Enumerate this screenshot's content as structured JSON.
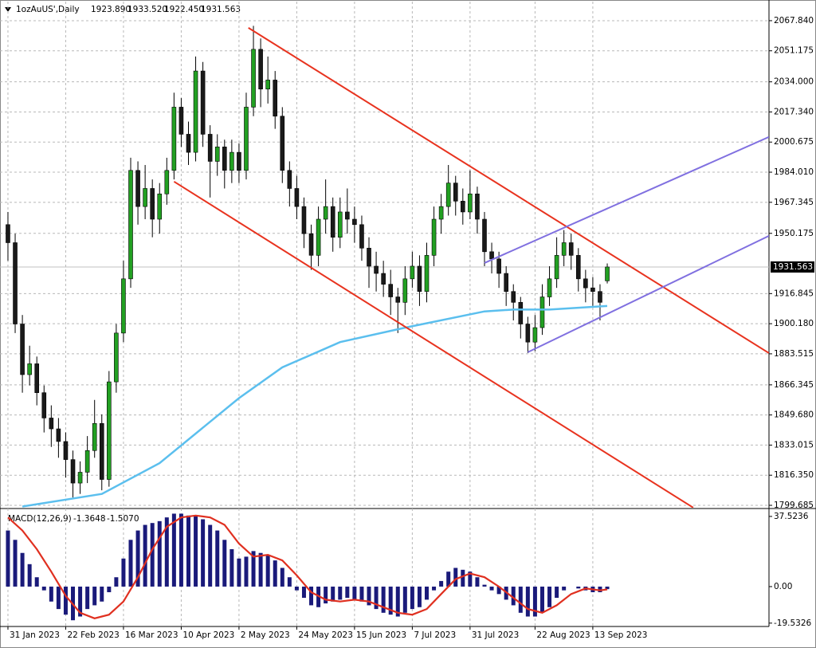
{
  "chart_data": [
    {
      "type": "candlestick",
      "title": "1ozAuUS',Daily",
      "title_values": [
        "1923.890",
        "1933.520",
        "1922.450",
        "1931.563"
      ],
      "xlim": [
        -1.1,
        105.4
      ],
      "xticks": [
        {
          "value": 0,
          "label": "31 Jan 2023"
        },
        {
          "value": 8,
          "label": "22 Feb 2023"
        },
        {
          "value": 16,
          "label": "16 Mar 2023"
        },
        {
          "value": 24,
          "label": "10 Apr 2023"
        },
        {
          "value": 32,
          "label": "2 May 2023"
        },
        {
          "value": 40,
          "label": "24 May 2023"
        },
        {
          "value": 48,
          "label": "15 Jun 2023"
        },
        {
          "value": 56,
          "label": "7 Jul 2023"
        },
        {
          "value": 64,
          "label": "31 Jul 2023"
        },
        {
          "value": 73,
          "label": "22 Aug 2023"
        },
        {
          "value": 81,
          "label": "13 Sep 2023"
        }
      ],
      "ylim": [
        1798.36,
        2078.4
      ],
      "yticks": [
        {
          "value": 2067.84,
          "label": "2067.840"
        },
        2051.175,
        {
          "value": 2034,
          "label": "2034.000"
        },
        {
          "value": 2017.34,
          "label": "2017.340"
        },
        2000.675,
        {
          "value": 1984.01,
          "label": "1984.010"
        },
        1967.345,
        1950.175,
        1916.845,
        {
          "value": 1900.18,
          "label": "1900.180"
        },
        1883.515,
        1866.345,
        {
          "value": 1849.68,
          "label": "1849.680"
        },
        1833.015,
        {
          "value": 1816.35,
          "label": "1816.350"
        },
        1799.685
      ],
      "grid": true,
      "last_price": 1931.563,
      "up_color": "#22a022",
      "down_color": "#1a1a1a",
      "open": [
        1955,
        1945,
        1900,
        1872,
        1878,
        1862,
        1848,
        1842,
        1835,
        1825,
        1812,
        1818,
        1830,
        1845,
        1814,
        1868,
        1895,
        1925,
        1985,
        1965,
        1975,
        1958,
        1972,
        1985,
        2020,
        2005,
        1995,
        2040,
        2005,
        1990,
        1998,
        1985,
        1995,
        1985,
        2020,
        2052,
        2030,
        2035,
        2015,
        1985,
        1975,
        1965,
        1950,
        1938,
        1958,
        1965,
        1948,
        1962,
        1958,
        1955,
        1942,
        1932,
        1928,
        1922,
        1915,
        1912,
        1925,
        1932,
        1918,
        1938,
        1958,
        1965,
        1978,
        1968,
        1962,
        1972,
        1958,
        1940,
        1936,
        1928,
        1918,
        1912,
        1900,
        1890,
        1898,
        1915,
        1925,
        1938,
        1945,
        1938,
        1925,
        1920,
        1918,
        1923.89
      ],
      "high": [
        1962,
        1950,
        1905,
        1888,
        1882,
        1866,
        1855,
        1848,
        1840,
        1830,
        1824,
        1838,
        1858,
        1850,
        1874,
        1900,
        1935,
        1992,
        1990,
        1988,
        1980,
        1978,
        1992,
        2028,
        2025,
        2012,
        2048,
        2045,
        2010,
        2005,
        2002,
        2002,
        2000,
        2028,
        2065,
        2058,
        2048,
        2040,
        2020,
        1990,
        1982,
        1970,
        1955,
        1965,
        1980,
        1970,
        1970,
        1975,
        1965,
        1960,
        1948,
        1940,
        1935,
        1930,
        1920,
        1932,
        1940,
        1938,
        1945,
        1965,
        1972,
        1988,
        1982,
        1975,
        1985,
        1976,
        1962,
        1945,
        1940,
        1932,
        1922,
        1915,
        1904,
        1905,
        1922,
        1932,
        1948,
        1952,
        1950,
        1942,
        1930,
        1926,
        1922,
        1933.52
      ],
      "low": [
        1935,
        1895,
        1862,
        1866,
        1855,
        1840,
        1832,
        1826,
        1815,
        1804,
        1806,
        1812,
        1826,
        1808,
        1810,
        1862,
        1890,
        1920,
        1955,
        1958,
        1948,
        1950,
        1966,
        1980,
        1998,
        1988,
        1990,
        1998,
        1970,
        1982,
        1975,
        1978,
        1978,
        1980,
        2015,
        2020,
        2022,
        2008,
        1978,
        1965,
        1958,
        1942,
        1930,
        1932,
        1950,
        1940,
        1942,
        1950,
        1945,
        1935,
        1920,
        1918,
        1915,
        1905,
        1895,
        1905,
        1920,
        1910,
        1912,
        1932,
        1950,
        1960,
        1960,
        1955,
        1958,
        1950,
        1932,
        1928,
        1920,
        1910,
        1902,
        1892,
        1884,
        1885,
        1894,
        1910,
        1920,
        1932,
        1930,
        1918,
        1912,
        1910,
        1902,
        1922.45
      ],
      "close": [
        1945,
        1900,
        1872,
        1878,
        1862,
        1848,
        1842,
        1835,
        1825,
        1812,
        1818,
        1830,
        1845,
        1814,
        1868,
        1895,
        1925,
        1985,
        1965,
        1975,
        1958,
        1972,
        1985,
        2020,
        2005,
        1995,
        2040,
        2005,
        1990,
        1998,
        1985,
        1995,
        1985,
        2020,
        2052,
        2030,
        2035,
        2015,
        1985,
        1975,
        1965,
        1950,
        1938,
        1958,
        1965,
        1948,
        1962,
        1958,
        1955,
        1942,
        1932,
        1928,
        1922,
        1915,
        1912,
        1925,
        1932,
        1918,
        1938,
        1958,
        1965,
        1978,
        1968,
        1962,
        1972,
        1958,
        1940,
        1936,
        1928,
        1918,
        1912,
        1900,
        1890,
        1898,
        1915,
        1925,
        1938,
        1945,
        1938,
        1925,
        1920,
        1918,
        1912,
        1931.563
      ],
      "lines": [
        {
          "color": "#5bbfee",
          "x": [
            2,
            13,
            21,
            32,
            38,
            46,
            55,
            66,
            70,
            75,
            83
          ],
          "values": [
            1799,
            1806,
            1823,
            1859,
            1876,
            1890,
            1898,
            1907,
            1908,
            1908,
            1910
          ]
        },
        {
          "color": "#e8331f",
          "x": [
            33.3,
            105.4
          ],
          "values": [
            2063.9,
            1883.9
          ]
        },
        {
          "color": "#e8331f",
          "x": [
            23,
            94.9
          ],
          "values": [
            1978.8,
            1798.4
          ]
        },
        {
          "color": "#8070e0",
          "x": [
            72,
            105.4
          ],
          "values": [
            1884.4,
            1948.8
          ]
        },
        {
          "color": "#8070e0",
          "x": [
            66,
            105.4
          ],
          "values": [
            1933.8,
            2003.5
          ]
        }
      ]
    },
    {
      "type": "macd",
      "title": "MACD(12,26,9)",
      "title_values": [
        "-1.3648",
        "-1.5070"
      ],
      "xlim": [
        -1.1,
        105.4
      ],
      "ylim": [
        -20.9,
        40.9
      ],
      "yticks": [
        37.5236,
        {
          "value": 0,
          "label": "0.00"
        },
        -19.5326
      ],
      "color": "#1a1a7a",
      "values": [
        30,
        25,
        18,
        12,
        5,
        -2,
        -8,
        -12,
        -15,
        -18,
        -16,
        -12,
        -10,
        -8,
        -3,
        5,
        15,
        25,
        30,
        33,
        34,
        35,
        37,
        39,
        39,
        38,
        38,
        36,
        33,
        30,
        25,
        20,
        15,
        16,
        19,
        18,
        17,
        14,
        10,
        5,
        -2,
        -6,
        -10,
        -11,
        -9,
        -8,
        -7,
        -6,
        -7,
        -8,
        -10,
        -12,
        -14,
        -15,
        -16,
        -14,
        -12,
        -11,
        -7,
        -2,
        3,
        8,
        10,
        9,
        8,
        5,
        1,
        -2,
        -4,
        -7,
        -10,
        -14,
        -16,
        -16,
        -14,
        -11,
        -6,
        -2,
        0,
        -1,
        -2,
        -3,
        -3,
        -1.3648
      ],
      "signal": {
        "color": "#e03020",
        "x": [
          0,
          2,
          4,
          6,
          8,
          10,
          12,
          14,
          16,
          18,
          20,
          22,
          24,
          26,
          28,
          30,
          32,
          34,
          36,
          38,
          40,
          42,
          44,
          46,
          48,
          50,
          52,
          54,
          56,
          58,
          60,
          62,
          64,
          66,
          68,
          70,
          72,
          74,
          76,
          78,
          80,
          82,
          83
        ],
        "values": [
          37,
          30,
          20,
          8,
          -5,
          -14,
          -17,
          -15,
          -8,
          5,
          20,
          32,
          37,
          38,
          37,
          33,
          23,
          16,
          17,
          14,
          6,
          -3,
          -7,
          -8,
          -7,
          -8,
          -11,
          -14,
          -15,
          -12,
          -4,
          4,
          7,
          5,
          0,
          -6,
          -12,
          -14,
          -10,
          -4,
          -1,
          -2,
          -1.507
        ]
      }
    }
  ]
}
